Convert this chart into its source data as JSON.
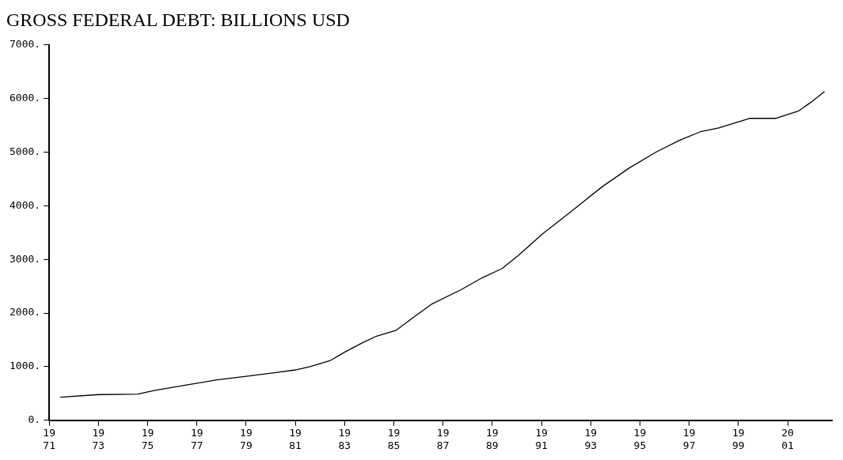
{
  "chart_data": {
    "type": "line",
    "title": "GROSS FEDERAL DEBT: BILLIONS USD",
    "x": [
      1971.45,
      1973,
      1974.6,
      1975.3,
      1977,
      1977.75,
      1979,
      1980.2,
      1981,
      1981.6,
      1982.4,
      1983,
      1983.7,
      1984.3,
      1985.1,
      1985.8,
      1986.55,
      1987.75,
      1988.6,
      1989.4,
      1990.05,
      1991.05,
      1992.25,
      1993.45,
      1994.55,
      1995.65,
      1996.6,
      1997.45,
      1998.2,
      1999.45,
      2000.5,
      2001.45,
      2001.95,
      2002.5
    ],
    "series": [
      {
        "color": "#000000",
        "values": [
          430,
          480,
          490,
          560,
          690,
          750,
          820,
          890,
          940,
          1000,
          1110,
          1270,
          1440,
          1570,
          1680,
          1920,
          2170,
          2440,
          2660,
          2830,
          3070,
          3480,
          3910,
          4350,
          4700,
          5000,
          5220,
          5380,
          5450,
          5630,
          5630,
          5770,
          5930,
          6130
        ]
      }
    ],
    "xlim": [
      1971,
      2002.8
    ],
    "xticks": [
      1971,
      1973,
      1975,
      1977,
      1979,
      1981,
      1983,
      1985,
      1987,
      1989,
      1991,
      1993,
      1995,
      1997,
      1999,
      2001
    ],
    "ylim": [
      0,
      7000
    ],
    "yticks": [
      {
        "value": 0,
        "label": "0."
      },
      {
        "value": 1000,
        "label": "1000."
      },
      {
        "value": 2000,
        "label": "2000."
      },
      {
        "value": 3000,
        "label": "3000."
      },
      {
        "value": 4000,
        "label": "4000."
      },
      {
        "value": 5000,
        "label": "5000."
      },
      {
        "value": 6000,
        "label": "6000."
      },
      {
        "value": 7000,
        "label": "7000."
      }
    ],
    "grid": false,
    "legend": false,
    "marker": "none",
    "line_style": "solid"
  }
}
